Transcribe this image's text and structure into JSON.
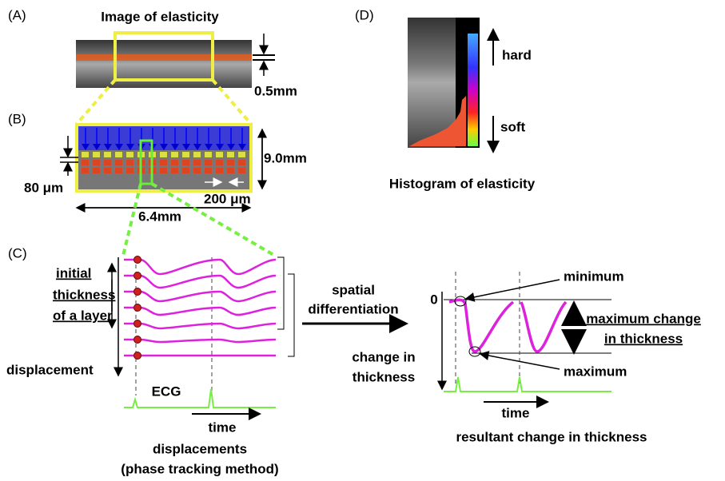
{
  "panel_a": {
    "label": "(A)",
    "title": "Image of elasticity",
    "scale": "0.5mm"
  },
  "panel_b": {
    "label": "(B)",
    "height": "9.0mm",
    "layer": "80 μm",
    "spacing": "200 μm",
    "width": "6.4mm"
  },
  "panel_c": {
    "label": "(C)",
    "layer_lines": [
      "initial",
      "thickness",
      "of a layer"
    ],
    "displacement": "displacement",
    "ecg": "ECG",
    "time": "time",
    "caption_lines": [
      "displacements",
      "(phase tracking method)"
    ]
  },
  "operation_lines": [
    "spatial",
    "differentiation"
  ],
  "result": {
    "zero": "0",
    "minimum": "minimum",
    "maximum": "maximum",
    "change_lines": [
      "maximum change",
      "in thickness"
    ],
    "axis_lines": [
      "change in",
      "thickness"
    ],
    "time": "time",
    "caption": "resultant change in thickness"
  },
  "panel_d": {
    "label": "(D)",
    "hard": "hard",
    "soft": "soft",
    "caption": "Histogram of elasticity"
  }
}
